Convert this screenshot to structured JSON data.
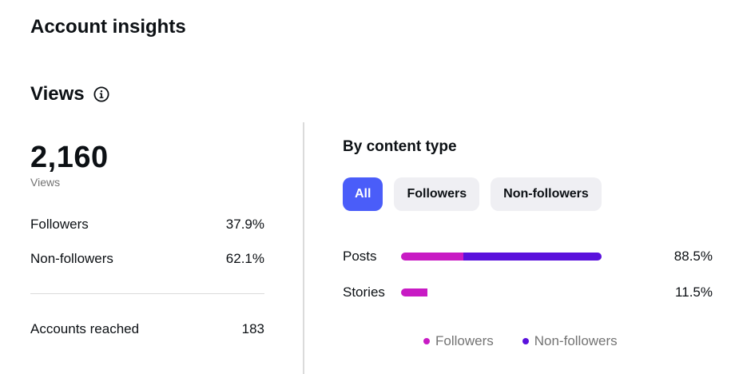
{
  "header": {
    "title": "Account insights"
  },
  "views_section": {
    "title": "Views",
    "info_icon": "info-icon",
    "total": "2,160",
    "total_label": "Views",
    "followers": {
      "label": "Followers",
      "value": "37.9%"
    },
    "non_followers": {
      "label": "Non-followers",
      "value": "62.1%"
    },
    "accounts_reached": {
      "label": "Accounts reached",
      "value": "183"
    }
  },
  "content_type": {
    "title": "By content type",
    "tabs": [
      {
        "label": "All",
        "active": true
      },
      {
        "label": "Followers",
        "active": false
      },
      {
        "label": "Non-followers",
        "active": false
      }
    ],
    "rows": [
      {
        "label": "Posts",
        "value": "88.5%",
        "total_pct": 88.5,
        "followers_share": 0.31
      },
      {
        "label": "Stories",
        "value": "11.5%",
        "total_pct": 11.5,
        "followers_share": 1.0
      }
    ],
    "legend": [
      {
        "label": "Followers",
        "color": "#c81bc4"
      },
      {
        "label": "Non-followers",
        "color": "#5a11dc"
      }
    ]
  },
  "colors": {
    "accent": "#4a5df9",
    "followers": "#c81bc4",
    "non_followers": "#5a11dc"
  }
}
